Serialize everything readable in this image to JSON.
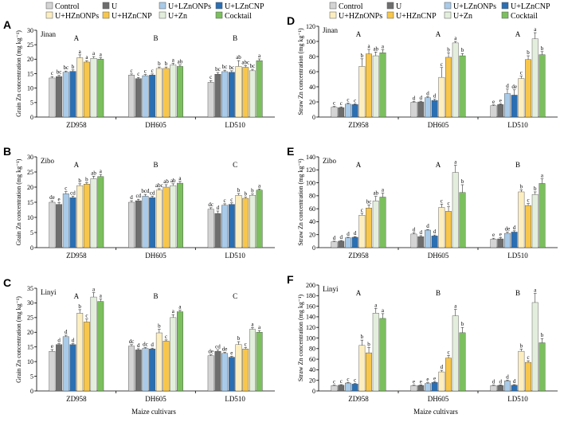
{
  "figure": {
    "x_axis_title": "Maize cultivars",
    "legend": [
      {
        "label": "Control",
        "color": "#d4d4d4"
      },
      {
        "label": "U",
        "color": "#6e6e6e"
      },
      {
        "label": "U+LZnONPs",
        "color": "#a9cbe9"
      },
      {
        "label": "U+LZnCNP",
        "color": "#2b6fb3"
      },
      {
        "label": "U+HZnONPs",
        "color": "#fdeec0"
      },
      {
        "label": "U+HZnCNP",
        "color": "#f7c64b"
      },
      {
        "label": "U+Zn",
        "color": "#e3efdc"
      },
      {
        "label": "Cocktail",
        "color": "#7bbf5e"
      }
    ]
  },
  "chart_data": [
    {
      "type": "bar",
      "panel": "A",
      "location": "Jinan",
      "ylabel": "Grain Zn concentration (mg kg⁻¹)",
      "ylim": [
        0,
        30
      ],
      "yticks": [
        0,
        5,
        10,
        15,
        20,
        25,
        30
      ],
      "categories": [
        "ZD958",
        "DH605",
        "LD510"
      ],
      "cultivar_letters": [
        "A",
        "B",
        "B"
      ],
      "series": [
        {
          "name": "Control",
          "values": [
            13.5,
            14.5,
            12.0
          ],
          "errors": [
            0.5,
            0.4,
            0.6
          ],
          "letters": [
            "c",
            "c",
            "c"
          ]
        },
        {
          "name": "U",
          "values": [
            14.0,
            13.3,
            14.8
          ],
          "errors": [
            0.4,
            0.4,
            0.6
          ],
          "letters": [
            "bc",
            "c",
            "bc"
          ]
        },
        {
          "name": "U+LZnONPs",
          "values": [
            15.5,
            14.3,
            15.7
          ],
          "errors": [
            0.4,
            0.4,
            0.5
          ],
          "letters": [
            "bc",
            "c",
            "bc"
          ]
        },
        {
          "name": "U+LZnCNP",
          "values": [
            15.8,
            14.5,
            15.5
          ],
          "errors": [
            0.5,
            0.4,
            0.5
          ],
          "letters": [
            "b",
            "c",
            "bc"
          ]
        },
        {
          "name": "U+HZnONPs",
          "values": [
            20.5,
            16.8,
            17.5
          ],
          "errors": [
            1.0,
            0.5,
            2.0
          ],
          "letters": [
            "a",
            "b",
            "ab"
          ]
        },
        {
          "name": "U+HZnCNP",
          "values": [
            19.0,
            16.8,
            17.2
          ],
          "errors": [
            0.5,
            0.5,
            0.6
          ],
          "letters": [
            "a",
            "b",
            "abc"
          ]
        },
        {
          "name": "U+Zn",
          "values": [
            20.3,
            18.0,
            16.0
          ],
          "errors": [
            0.6,
            0.6,
            0.5
          ],
          "letters": [
            "a",
            "a",
            "bc"
          ]
        },
        {
          "name": "Cocktail",
          "values": [
            20.0,
            17.5,
            19.5
          ],
          "errors": [
            0.5,
            0.5,
            0.6
          ],
          "letters": [
            "a",
            "ab",
            "a"
          ]
        }
      ]
    },
    {
      "type": "bar",
      "panel": "B",
      "location": "Zibo",
      "ylabel": "Grain Zn concentration (mg kg⁻¹)",
      "ylim": [
        0,
        30
      ],
      "yticks": [
        0,
        5,
        10,
        15,
        20,
        25,
        30
      ],
      "categories": [
        "ZD958",
        "DH605",
        "LD510"
      ],
      "cultivar_letters": [
        "A",
        "B",
        "C"
      ],
      "series": [
        {
          "name": "Control",
          "values": [
            15.0,
            15.0,
            12.7
          ],
          "errors": [
            0.5,
            0.5,
            0.5
          ],
          "letters": [
            "de",
            "d",
            "dc"
          ]
        },
        {
          "name": "U",
          "values": [
            14.3,
            15.5,
            11.3
          ],
          "errors": [
            0.6,
            0.5,
            0.8
          ],
          "letters": [
            "e",
            "cd",
            "d"
          ]
        },
        {
          "name": "U+LZnONPs",
          "values": [
            17.8,
            17.0,
            14.0
          ],
          "errors": [
            0.7,
            0.6,
            0.5
          ],
          "letters": [
            "c",
            "bcd",
            "c"
          ]
        },
        {
          "name": "U+LZnCNP",
          "values": [
            16.5,
            16.5,
            14.3
          ],
          "errors": [
            0.5,
            0.5,
            0.5
          ],
          "letters": [
            "cd",
            "cd",
            "c"
          ]
        },
        {
          "name": "U+HZnONPs",
          "values": [
            20.5,
            19.0,
            17.3
          ],
          "errors": [
            0.6,
            0.5,
            0.6
          ],
          "letters": [
            "b",
            "abc",
            "b"
          ]
        },
        {
          "name": "U+HZnCNP",
          "values": [
            21.0,
            20.0,
            16.3
          ],
          "errors": [
            0.5,
            0.8,
            0.4
          ],
          "letters": [
            "b",
            "ab",
            "b"
          ]
        },
        {
          "name": "U+Zn",
          "values": [
            22.8,
            20.5,
            17.3
          ],
          "errors": [
            0.8,
            0.6,
            0.4
          ],
          "letters": [
            "ab",
            "ab",
            "b"
          ]
        },
        {
          "name": "Cocktail",
          "values": [
            23.5,
            21.3,
            19.0
          ],
          "errors": [
            0.7,
            0.6,
            0.4
          ],
          "letters": [
            "a",
            "a",
            "a"
          ]
        }
      ]
    },
    {
      "type": "bar",
      "panel": "C",
      "location": "Linyi",
      "ylabel": "Grain Zn concentration (mg kg⁻¹)",
      "ylim": [
        0,
        35
      ],
      "yticks": [
        0,
        5,
        10,
        15,
        20,
        25,
        30,
        35
      ],
      "categories": [
        "ZD958",
        "DH605",
        "LD510"
      ],
      "cultivar_letters": [
        "A",
        "B",
        "C"
      ],
      "series": [
        {
          "name": "Control",
          "values": [
            13.5,
            15.3,
            12.0
          ],
          "errors": [
            0.6,
            0.5,
            0.3
          ],
          "letters": [
            "e",
            "dc",
            "de"
          ]
        },
        {
          "name": "U",
          "values": [
            15.8,
            14.0,
            13.5
          ],
          "errors": [
            0.3,
            0.4,
            0.5
          ],
          "letters": [
            "d",
            "d",
            "cd"
          ]
        },
        {
          "name": "U+LZnONPs",
          "values": [
            18.5,
            14.5,
            12.8
          ],
          "errors": [
            0.5,
            0.3,
            0.4
          ],
          "letters": [
            "d",
            "dc",
            "de"
          ]
        },
        {
          "name": "U+LZnCNP",
          "values": [
            15.8,
            14.3,
            11.5
          ],
          "errors": [
            0.3,
            0.3,
            0.3
          ],
          "letters": [
            "d",
            "d",
            "e"
          ]
        },
        {
          "name": "U+HZnONPs",
          "values": [
            26.5,
            19.8,
            15.8
          ],
          "errors": [
            1.2,
            1.2,
            1.0
          ],
          "letters": [
            "b",
            "b",
            "b"
          ]
        },
        {
          "name": "U+HZnCNP",
          "values": [
            23.5,
            17.0,
            14.3
          ],
          "errors": [
            1.0,
            0.4,
            0.5
          ],
          "letters": [
            "c",
            "c",
            "c"
          ]
        },
        {
          "name": "U+Zn",
          "values": [
            32.0,
            25.0,
            21.0
          ],
          "errors": [
            1.5,
            1.0,
            0.6
          ],
          "letters": [
            "a",
            "a",
            "a"
          ]
        },
        {
          "name": "Cocktail",
          "values": [
            30.5,
            27.0,
            20.0
          ],
          "errors": [
            0.8,
            0.5,
            0.6
          ],
          "letters": [
            "a",
            "a",
            "a"
          ]
        }
      ]
    },
    {
      "type": "bar",
      "panel": "D",
      "location": "Jinan",
      "ylabel": "Straw Zn concentration (mg kg⁻¹)",
      "ylim": [
        0,
        120
      ],
      "yticks": [
        0,
        20,
        40,
        60,
        80,
        100,
        120
      ],
      "categories": [
        "ZD958",
        "DH605",
        "LD510"
      ],
      "cultivar_letters": [
        "A",
        "A",
        "A"
      ],
      "series": [
        {
          "name": "Control",
          "values": [
            13.0,
            19.5,
            15.0
          ],
          "errors": [
            1.0,
            1.0,
            1.0
          ],
          "letters": [
            "c",
            "d",
            "e"
          ]
        },
        {
          "name": "U",
          "values": [
            12.5,
            20.0,
            16.5
          ],
          "errors": [
            1.0,
            1.0,
            1.0
          ],
          "letters": [
            "c",
            "d",
            "e"
          ]
        },
        {
          "name": "U+LZnONPs",
          "values": [
            17.0,
            25.5,
            31.0
          ],
          "errors": [
            1.5,
            1.5,
            6.0
          ],
          "letters": [
            "c",
            "d",
            "d"
          ]
        },
        {
          "name": "U+LZnCNP",
          "values": [
            16.5,
            22.0,
            29.0
          ],
          "errors": [
            1.0,
            1.5,
            7.0
          ],
          "letters": [
            "c",
            "d",
            "de"
          ]
        },
        {
          "name": "U+HZnONPs",
          "values": [
            67.0,
            52.5,
            51.0
          ],
          "errors": [
            10.0,
            13.0,
            3.0
          ],
          "letters": [
            "b",
            "c",
            "c"
          ]
        },
        {
          "name": "U+HZnCNP",
          "values": [
            83.5,
            79.0,
            76.0
          ],
          "errors": [
            6.0,
            6.0,
            5.0
          ],
          "letters": [
            "a",
            "b",
            "b"
          ]
        },
        {
          "name": "U+Zn",
          "values": [
            81.0,
            98.0,
            103.5
          ],
          "errors": [
            5.0,
            2.0,
            8.0
          ],
          "letters": [
            "ab",
            "a",
            "a"
          ]
        },
        {
          "name": "Cocktail",
          "values": [
            85.0,
            81.0,
            82.5
          ],
          "errors": [
            4.0,
            3.0,
            4.0
          ],
          "letters": [
            "a",
            "b",
            "b"
          ]
        }
      ]
    },
    {
      "type": "bar",
      "panel": "E",
      "location": "Zibo",
      "ylabel": "Straw Zn concentration (mg kg⁻¹)",
      "ylim": [
        0,
        140
      ],
      "yticks": [
        0,
        20,
        40,
        60,
        80,
        100,
        120,
        140
      ],
      "categories": [
        "ZD958",
        "DH605",
        "LD510"
      ],
      "cultivar_letters": [
        "A",
        "A",
        "B"
      ],
      "series": [
        {
          "name": "Control",
          "values": [
            9.0,
            21.0,
            13.0
          ],
          "errors": [
            1.0,
            2.0,
            1.5
          ],
          "letters": [
            "d",
            "d",
            "e"
          ]
        },
        {
          "name": "U",
          "values": [
            10.0,
            17.0,
            13.5
          ],
          "errors": [
            1.0,
            1.5,
            2.0
          ],
          "letters": [
            "d",
            "d",
            "e"
          ]
        },
        {
          "name": "U+LZnONPs",
          "values": [
            15.0,
            27.0,
            22.0
          ],
          "errors": [
            1.0,
            1.0,
            2.0
          ],
          "letters": [
            "d",
            "d",
            "de"
          ]
        },
        {
          "name": "U+LZnCNP",
          "values": [
            16.0,
            18.0,
            24.0
          ],
          "errors": [
            1.0,
            1.5,
            2.0
          ],
          "letters": [
            "d",
            "d",
            "d"
          ]
        },
        {
          "name": "U+HZnONPs",
          "values": [
            50.0,
            62.0,
            86.0
          ],
          "errors": [
            3.0,
            5.0,
            3.0
          ],
          "letters": [
            "c",
            "c",
            "b"
          ]
        },
        {
          "name": "U+HZnCNP",
          "values": [
            61.0,
            56.0,
            65.0
          ],
          "errors": [
            5.0,
            7.0,
            3.0
          ],
          "letters": [
            "bc",
            "c",
            "c"
          ]
        },
        {
          "name": "U+Zn",
          "values": [
            72.0,
            116.0,
            82.0
          ],
          "errors": [
            7.0,
            11.0,
            4.0
          ],
          "letters": [
            "ab",
            "a",
            "b"
          ]
        },
        {
          "name": "Cocktail",
          "values": [
            78.0,
            85.0,
            99.0
          ],
          "errors": [
            6.0,
            12.0,
            7.0
          ],
          "letters": [
            "a",
            "b",
            "a"
          ]
        }
      ]
    },
    {
      "type": "bar",
      "panel": "F",
      "location": "Linyi",
      "ylabel": "Straw Zn concentration (mg kg⁻¹)",
      "ylim": [
        0,
        200
      ],
      "yticks": [
        0,
        20,
        40,
        60,
        80,
        100,
        120,
        140,
        160,
        180,
        200
      ],
      "categories": [
        "ZD958",
        "DH605",
        "LD510"
      ],
      "cultivar_letters": [
        "A",
        "B",
        "B"
      ],
      "series": [
        {
          "name": "Control",
          "values": [
            10.0,
            10.0,
            10.0
          ],
          "errors": [
            1.0,
            1.0,
            1.0
          ],
          "letters": [
            "c",
            "e",
            "d"
          ]
        },
        {
          "name": "U",
          "values": [
            11.0,
            10.5,
            10.5
          ],
          "errors": [
            1.0,
            1.0,
            1.0
          ],
          "letters": [
            "c",
            "e",
            "d"
          ]
        },
        {
          "name": "U+LZnONPs",
          "values": [
            15.0,
            14.0,
            19.0
          ],
          "errors": [
            1.0,
            1.5,
            1.5
          ],
          "letters": [
            "c",
            "e",
            "d"
          ]
        },
        {
          "name": "U+LZnCNP",
          "values": [
            13.0,
            16.0,
            11.0
          ],
          "errors": [
            1.0,
            1.5,
            1.0
          ],
          "letters": [
            "c",
            "e",
            "d"
          ]
        },
        {
          "name": "U+HZnONPs",
          "values": [
            86.0,
            36.0,
            75.0
          ],
          "errors": [
            10.0,
            3.0,
            4.0
          ],
          "letters": [
            "b",
            "d",
            "b"
          ]
        },
        {
          "name": "U+HZnCNP",
          "values": [
            72.0,
            62.0,
            54.0
          ],
          "errors": [
            10.0,
            5.0,
            3.0
          ],
          "letters": [
            "b",
            "c",
            "c"
          ]
        },
        {
          "name": "U+Zn",
          "values": [
            147.0,
            142.0,
            167.0
          ],
          "errors": [
            9.0,
            12.0,
            17.0
          ],
          "letters": [
            "a",
            "a",
            "a"
          ]
        },
        {
          "name": "Cocktail",
          "values": [
            137.0,
            110.0,
            91.0
          ],
          "errors": [
            9.0,
            10.0,
            8.0
          ],
          "letters": [
            "a",
            "b",
            "b"
          ]
        }
      ]
    }
  ]
}
